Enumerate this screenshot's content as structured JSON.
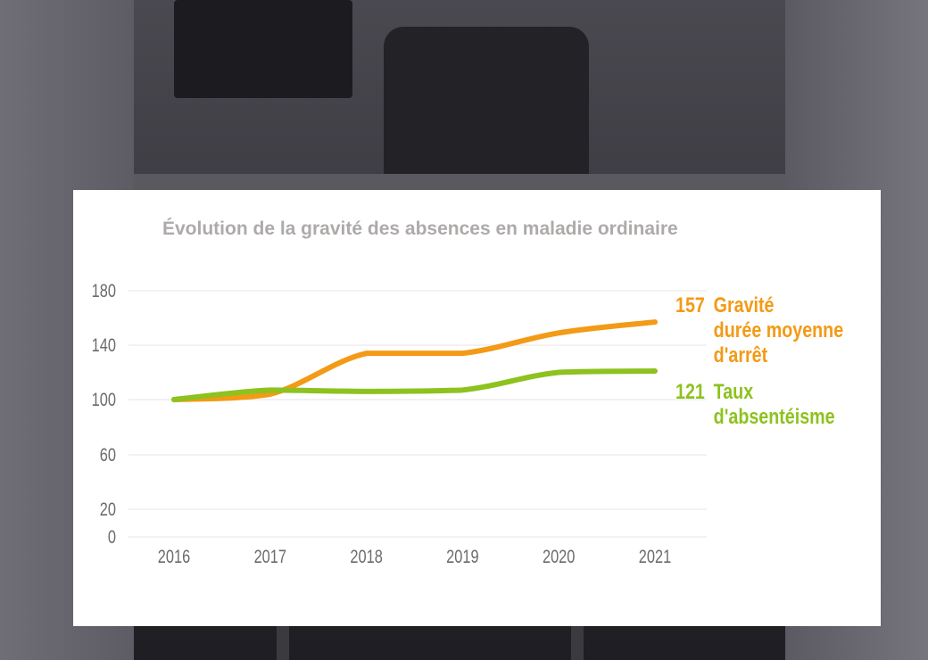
{
  "colors": {
    "gravite": "#f39a16",
    "absenteisme": "#8dc21f",
    "title": "#aeaaa9",
    "grid": "#e4e4e4",
    "axis_text": "#6b6b6b"
  },
  "chart_data": {
    "type": "line",
    "title": "Évolution de la gravité des absences en maladie ordinaire",
    "xlabel": "",
    "ylabel": "",
    "categories": [
      "2016",
      "2017",
      "2018",
      "2019",
      "2020",
      "2021"
    ],
    "y_ticks": [
      "0",
      "20",
      "60",
      "100",
      "140",
      "180"
    ],
    "ylim": [
      0,
      180
    ],
    "grid": true,
    "series": [
      {
        "key": "gravite",
        "name_lines": [
          "Gravité",
          "durée moyenne",
          "d'arrêt"
        ],
        "end_value": "157",
        "values": [
          100,
          104,
          134,
          134,
          149,
          157
        ]
      },
      {
        "key": "absenteisme",
        "name_lines": [
          "Taux",
          "d'absentéisme"
        ],
        "end_value": "121",
        "values": [
          100,
          107,
          106,
          107,
          120,
          121
        ]
      }
    ]
  }
}
